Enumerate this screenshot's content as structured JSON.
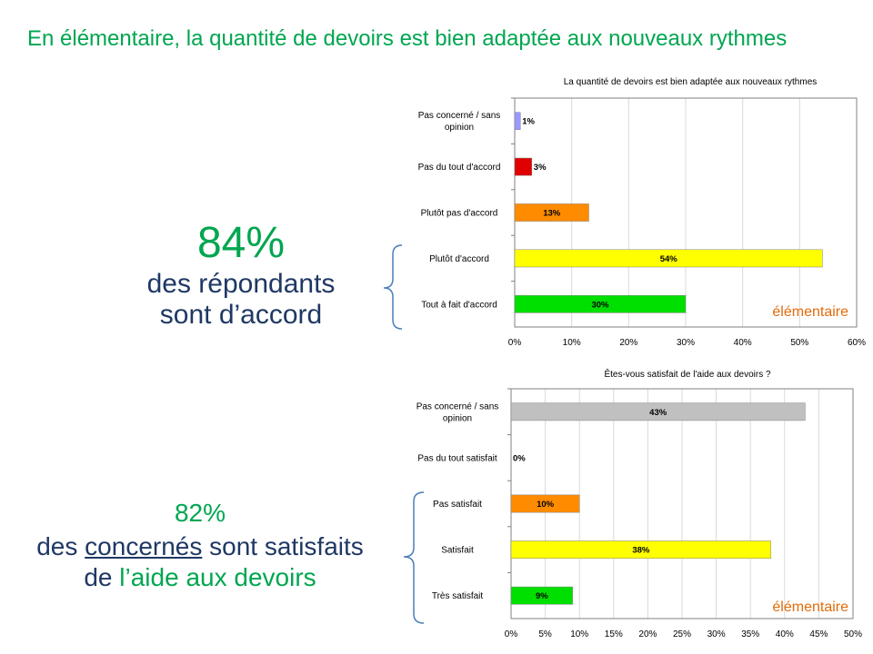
{
  "title": "En élémentaire, la quantité de devoirs est bien adaptée aux nouveaux rythmes",
  "stat1": {
    "pct": "84%",
    "line1": "des répondants",
    "line2": "sont d’accord"
  },
  "stat2": {
    "pct": "82%",
    "line1_a": "des ",
    "line1_b": "concernés",
    "line1_c": " sont satisfaits",
    "line2_a": "de ",
    "line2_b": "l’aide aux devoirs"
  },
  "chart_data": [
    {
      "type": "bar",
      "orientation": "horizontal",
      "title": "La quantité de devoirs est bien adaptée aux nouveaux rythmes",
      "categories": [
        [
          "Pas concerné / sans",
          "opinion"
        ],
        [
          "Pas du tout d'accord"
        ],
        [
          "Plutôt pas d'accord"
        ],
        [
          "Plutôt d'accord"
        ],
        [
          "Tout à fait d'accord"
        ]
      ],
      "values": [
        1,
        3,
        13,
        54,
        30
      ],
      "labels": [
        "1%",
        "3%",
        "13%",
        "54%",
        "30%"
      ],
      "colors": [
        "#9999ff",
        "#e00000",
        "#ff8c00",
        "#ffff00",
        "#00e000"
      ],
      "ticks": [
        "0%",
        "10%",
        "20%",
        "30%",
        "40%",
        "50%",
        "60%"
      ],
      "xlim": [
        0,
        60
      ],
      "annotation": "élémentaire",
      "grid": true
    },
    {
      "type": "bar",
      "orientation": "horizontal",
      "title": "Êtes-vous satisfait de l'aide aux devoirs ?",
      "categories": [
        [
          "Pas concerné / sans",
          "opinion"
        ],
        [
          "Pas du tout satisfait"
        ],
        [
          "Pas satisfait"
        ],
        [
          "Satisfait"
        ],
        [
          "Très satisfait"
        ]
      ],
      "values": [
        43,
        0,
        10,
        38,
        9
      ],
      "labels": [
        "43%",
        "0%",
        "10%",
        "38%",
        "9%"
      ],
      "colors": [
        "#c0c0c0",
        "#c0c0c0",
        "#ff8c00",
        "#ffff00",
        "#00e000"
      ],
      "ticks": [
        "0%",
        "5%",
        "10%",
        "15%",
        "20%",
        "25%",
        "30%",
        "35%",
        "40%",
        "45%",
        "50%"
      ],
      "xlim": [
        0,
        50
      ],
      "annotation": "élémentaire",
      "grid": true
    }
  ]
}
